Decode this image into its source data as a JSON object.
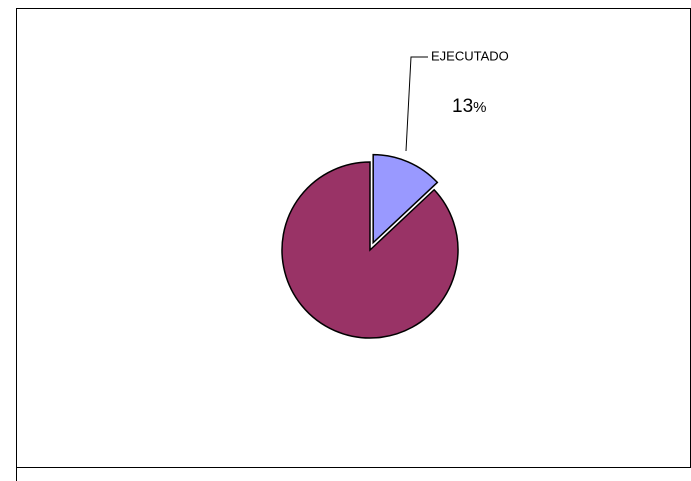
{
  "chart_data": {
    "type": "pie",
    "title": "",
    "slices": [
      {
        "label": "EJECUTADO",
        "value": 13,
        "value_label": "13",
        "unit": "%",
        "color": "#9999ff",
        "exploded": true
      },
      {
        "label": "",
        "value": 87,
        "color": "#993366",
        "exploded": false
      }
    ],
    "legend": "none"
  }
}
